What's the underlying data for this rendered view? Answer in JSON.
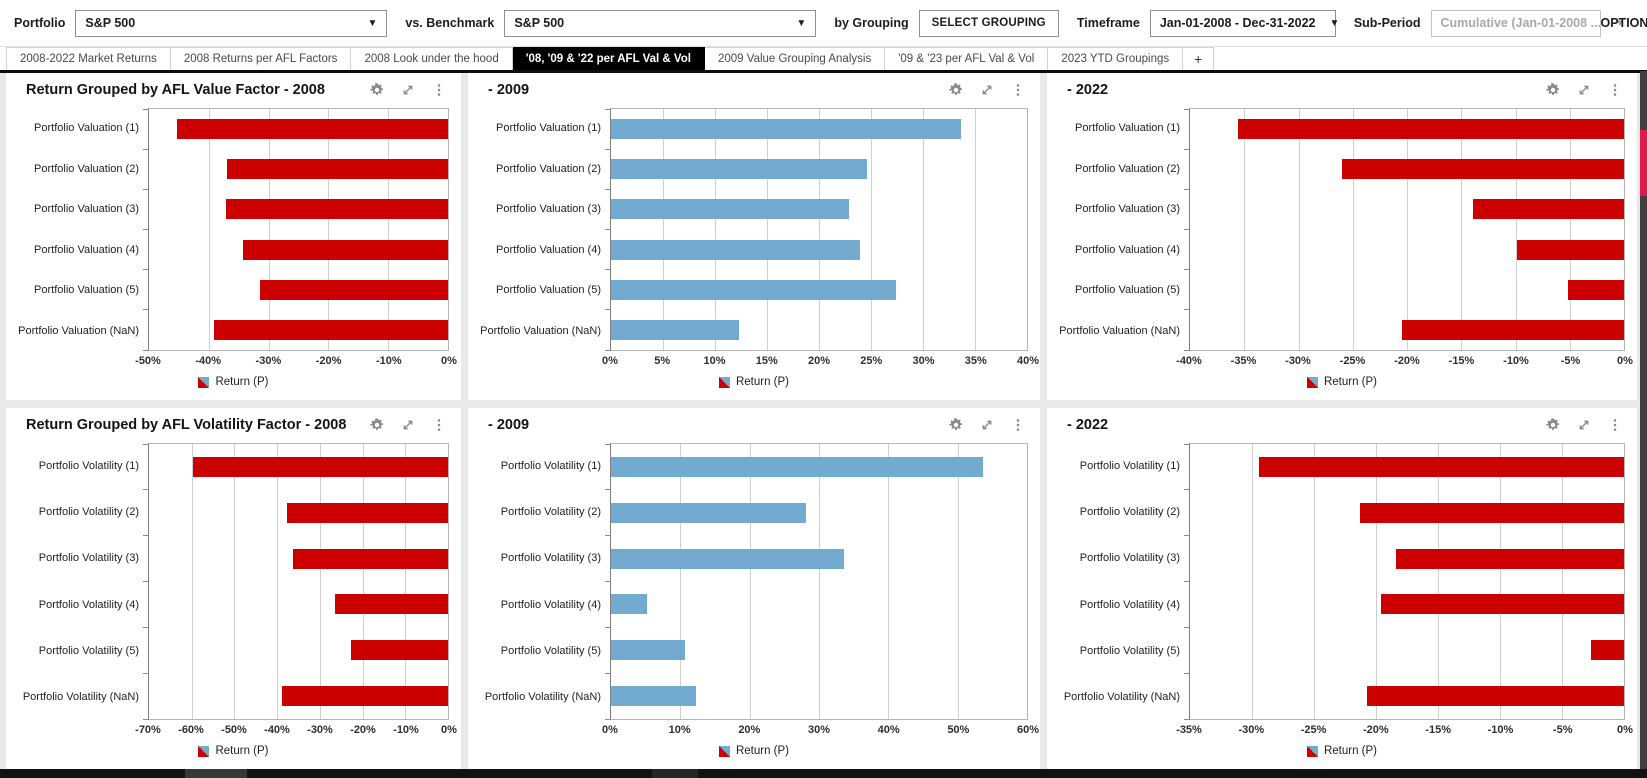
{
  "toolbar": {
    "portfolio_label": "Portfolio",
    "portfolio_value": "S&P 500",
    "benchmark_label": "vs. Benchmark",
    "benchmark_value": "S&P 500",
    "grouping_label": "by Grouping",
    "grouping_button": "SELECT GROUPING",
    "timeframe_label": "Timeframe",
    "timeframe_value": "Jan-01-2008 - Dec-31-2022",
    "subperiod_label": "Sub-Period",
    "subperiod_value": "Cumulative (Jan-01-2008 ...",
    "options_label": "OPTIONS"
  },
  "tabs": [
    {
      "label": "2008-2022 Market Returns",
      "active": false
    },
    {
      "label": "2008 Returns per AFL Factors",
      "active": false
    },
    {
      "label": "2008 Look under the hood",
      "active": false
    },
    {
      "label": "'08, '09 & '22 per AFL Val & Vol",
      "active": true
    },
    {
      "label": "2009 Value Grouping Analysis",
      "active": false
    },
    {
      "label": "'09 & '23 per AFL Val & Vol",
      "active": false
    },
    {
      "label": "2023 YTD Groupings",
      "active": false
    },
    {
      "label": "+",
      "active": false,
      "add": true
    }
  ],
  "legend_label": "Return (P)",
  "colors": {
    "negative_bar": "#cc0000",
    "positive_bar": "#73abd0",
    "active_tab_bg": "#000000",
    "scroll_thumb": "#e01b4c"
  },
  "chart_data": [
    {
      "type": "bar",
      "title": "Return Grouped by AFL Value Factor - 2008",
      "categories": [
        "Portfolio Valuation (1)",
        "Portfolio Valuation (2)",
        "Portfolio Valuation (3)",
        "Portfolio Valuation (4)",
        "Portfolio Valuation (5)",
        "Portfolio Valuation (NaN)"
      ],
      "values": [
        -45.3,
        -36.9,
        -37.2,
        -34.2,
        -31.5,
        -39.1
      ],
      "xlim": [
        -50,
        0
      ],
      "tick_step": 10,
      "tick_format": "percent",
      "color": "#cc0000",
      "legend": "Return (P)",
      "orientation": "horizontal",
      "grid": true
    },
    {
      "type": "bar",
      "title": "- 2009",
      "categories": [
        "Portfolio Valuation (1)",
        "Portfolio Valuation (2)",
        "Portfolio Valuation (3)",
        "Portfolio Valuation (4)",
        "Portfolio Valuation (5)",
        "Portfolio Valuation (NaN)"
      ],
      "values": [
        33.7,
        24.6,
        22.9,
        23.9,
        27.4,
        12.3
      ],
      "xlim": [
        0,
        40
      ],
      "tick_step": 5,
      "tick_format": "percent",
      "color": "#73abd0",
      "legend": "Return (P)",
      "orientation": "horizontal",
      "grid": true
    },
    {
      "type": "bar",
      "title": "- 2022",
      "categories": [
        "Portfolio Valuation (1)",
        "Portfolio Valuation (2)",
        "Portfolio Valuation (3)",
        "Portfolio Valuation (4)",
        "Portfolio Valuation (5)",
        "Portfolio Valuation (NaN)"
      ],
      "values": [
        -35.6,
        -26.0,
        -13.9,
        -9.9,
        -5.2,
        -20.5
      ],
      "xlim": [
        -40,
        0
      ],
      "tick_step": 5,
      "tick_format": "percent",
      "color": "#cc0000",
      "legend": "Return (P)",
      "orientation": "horizontal",
      "grid": true
    },
    {
      "type": "bar",
      "title": "Return Grouped by AFL Volatility Factor - 2008",
      "categories": [
        "Portfolio Volatility (1)",
        "Portfolio Volatility (2)",
        "Portfolio Volatility (3)",
        "Portfolio Volatility (4)",
        "Portfolio Volatility (5)",
        "Portfolio Volatility (NaN)"
      ],
      "values": [
        -59.8,
        -37.7,
        -36.4,
        -26.4,
        -22.6,
        -38.8
      ],
      "xlim": [
        -70,
        0
      ],
      "tick_step": 10,
      "tick_format": "percent",
      "color": "#cc0000",
      "legend": "Return (P)",
      "orientation": "horizontal",
      "grid": true
    },
    {
      "type": "bar",
      "title": "- 2009",
      "categories": [
        "Portfolio Volatility (1)",
        "Portfolio Volatility (2)",
        "Portfolio Volatility (3)",
        "Portfolio Volatility (4)",
        "Portfolio Volatility (5)",
        "Portfolio Volatility (NaN)"
      ],
      "values": [
        53.6,
        28.1,
        33.6,
        5.2,
        10.7,
        12.3
      ],
      "xlim": [
        0,
        60
      ],
      "tick_step": 10,
      "tick_format": "percent",
      "color": "#73abd0",
      "legend": "Return (P)",
      "orientation": "horizontal",
      "grid": true
    },
    {
      "type": "bar",
      "title": "- 2022",
      "categories": [
        "Portfolio Volatility (1)",
        "Portfolio Volatility (2)",
        "Portfolio Volatility (3)",
        "Portfolio Volatility (4)",
        "Portfolio Volatility (5)",
        "Portfolio Volatility (NaN)"
      ],
      "values": [
        -29.4,
        -21.3,
        -18.4,
        -19.6,
        -2.7,
        -20.7
      ],
      "xlim": [
        -35,
        0
      ],
      "tick_step": 5,
      "tick_format": "percent",
      "color": "#cc0000",
      "legend": "Return (P)",
      "orientation": "horizontal",
      "grid": true
    }
  ]
}
